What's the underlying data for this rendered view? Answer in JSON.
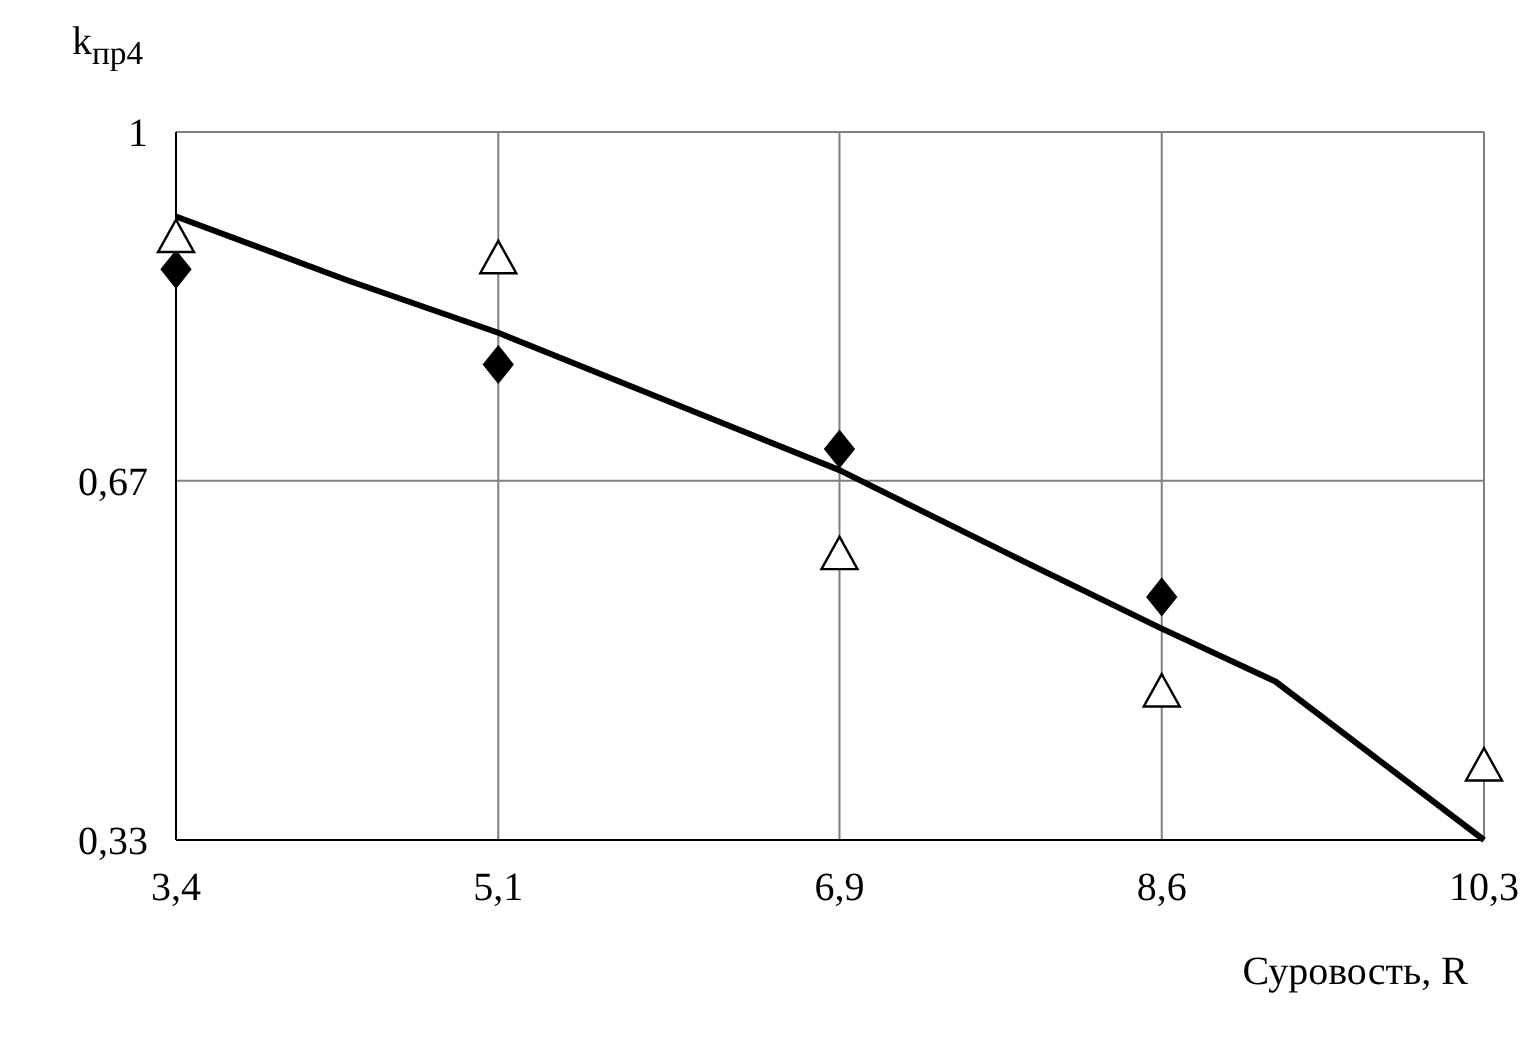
{
  "chart_data": {
    "type": "scatter",
    "xlabel": "Суровость, R",
    "ylabel": "k$_{пр4}$",
    "series": [
      {
        "type": "line",
        "color": "#000000",
        "marker": "none",
        "line_style": "solid",
        "x": [
          3.4,
          4.3,
          5.1,
          6.0,
          6.9,
          7.8,
          8.6,
          9.2,
          10.3
        ],
        "values": [
          0.92,
          0.86,
          0.81,
          0.745,
          0.68,
          0.6,
          0.53,
          0.48,
          0.33
        ]
      },
      {
        "color": "#000000",
        "marker": "diamond",
        "x": [
          3.4,
          5.1,
          6.9,
          8.6
        ],
        "values": [
          0.87,
          0.78,
          0.7,
          0.56
        ]
      },
      {
        "color": "#000000",
        "marker": "triangle",
        "x": [
          3.4,
          5.1,
          6.9,
          8.6,
          10.3
        ],
        "values": [
          0.9,
          0.88,
          0.6,
          0.47,
          0.4
        ]
      }
    ],
    "xlim": [
      3.4,
      10.3
    ],
    "xticks": [
      {
        "value": 3.4,
        "label": "3,4"
      },
      {
        "value": 5.1,
        "label": "5,1"
      },
      {
        "value": 6.9,
        "label": "6,9"
      },
      {
        "value": 8.6,
        "label": "8,6"
      },
      {
        "value": 10.3,
        "label": "10,3"
      }
    ],
    "ylim": [
      0.33,
      1
    ],
    "yticks": [
      {
        "value": 0.33,
        "label": "0,33"
      },
      {
        "value": 0.67,
        "label": "0,67"
      },
      {
        "value": 1,
        "label": "1"
      }
    ],
    "grid": true
  }
}
